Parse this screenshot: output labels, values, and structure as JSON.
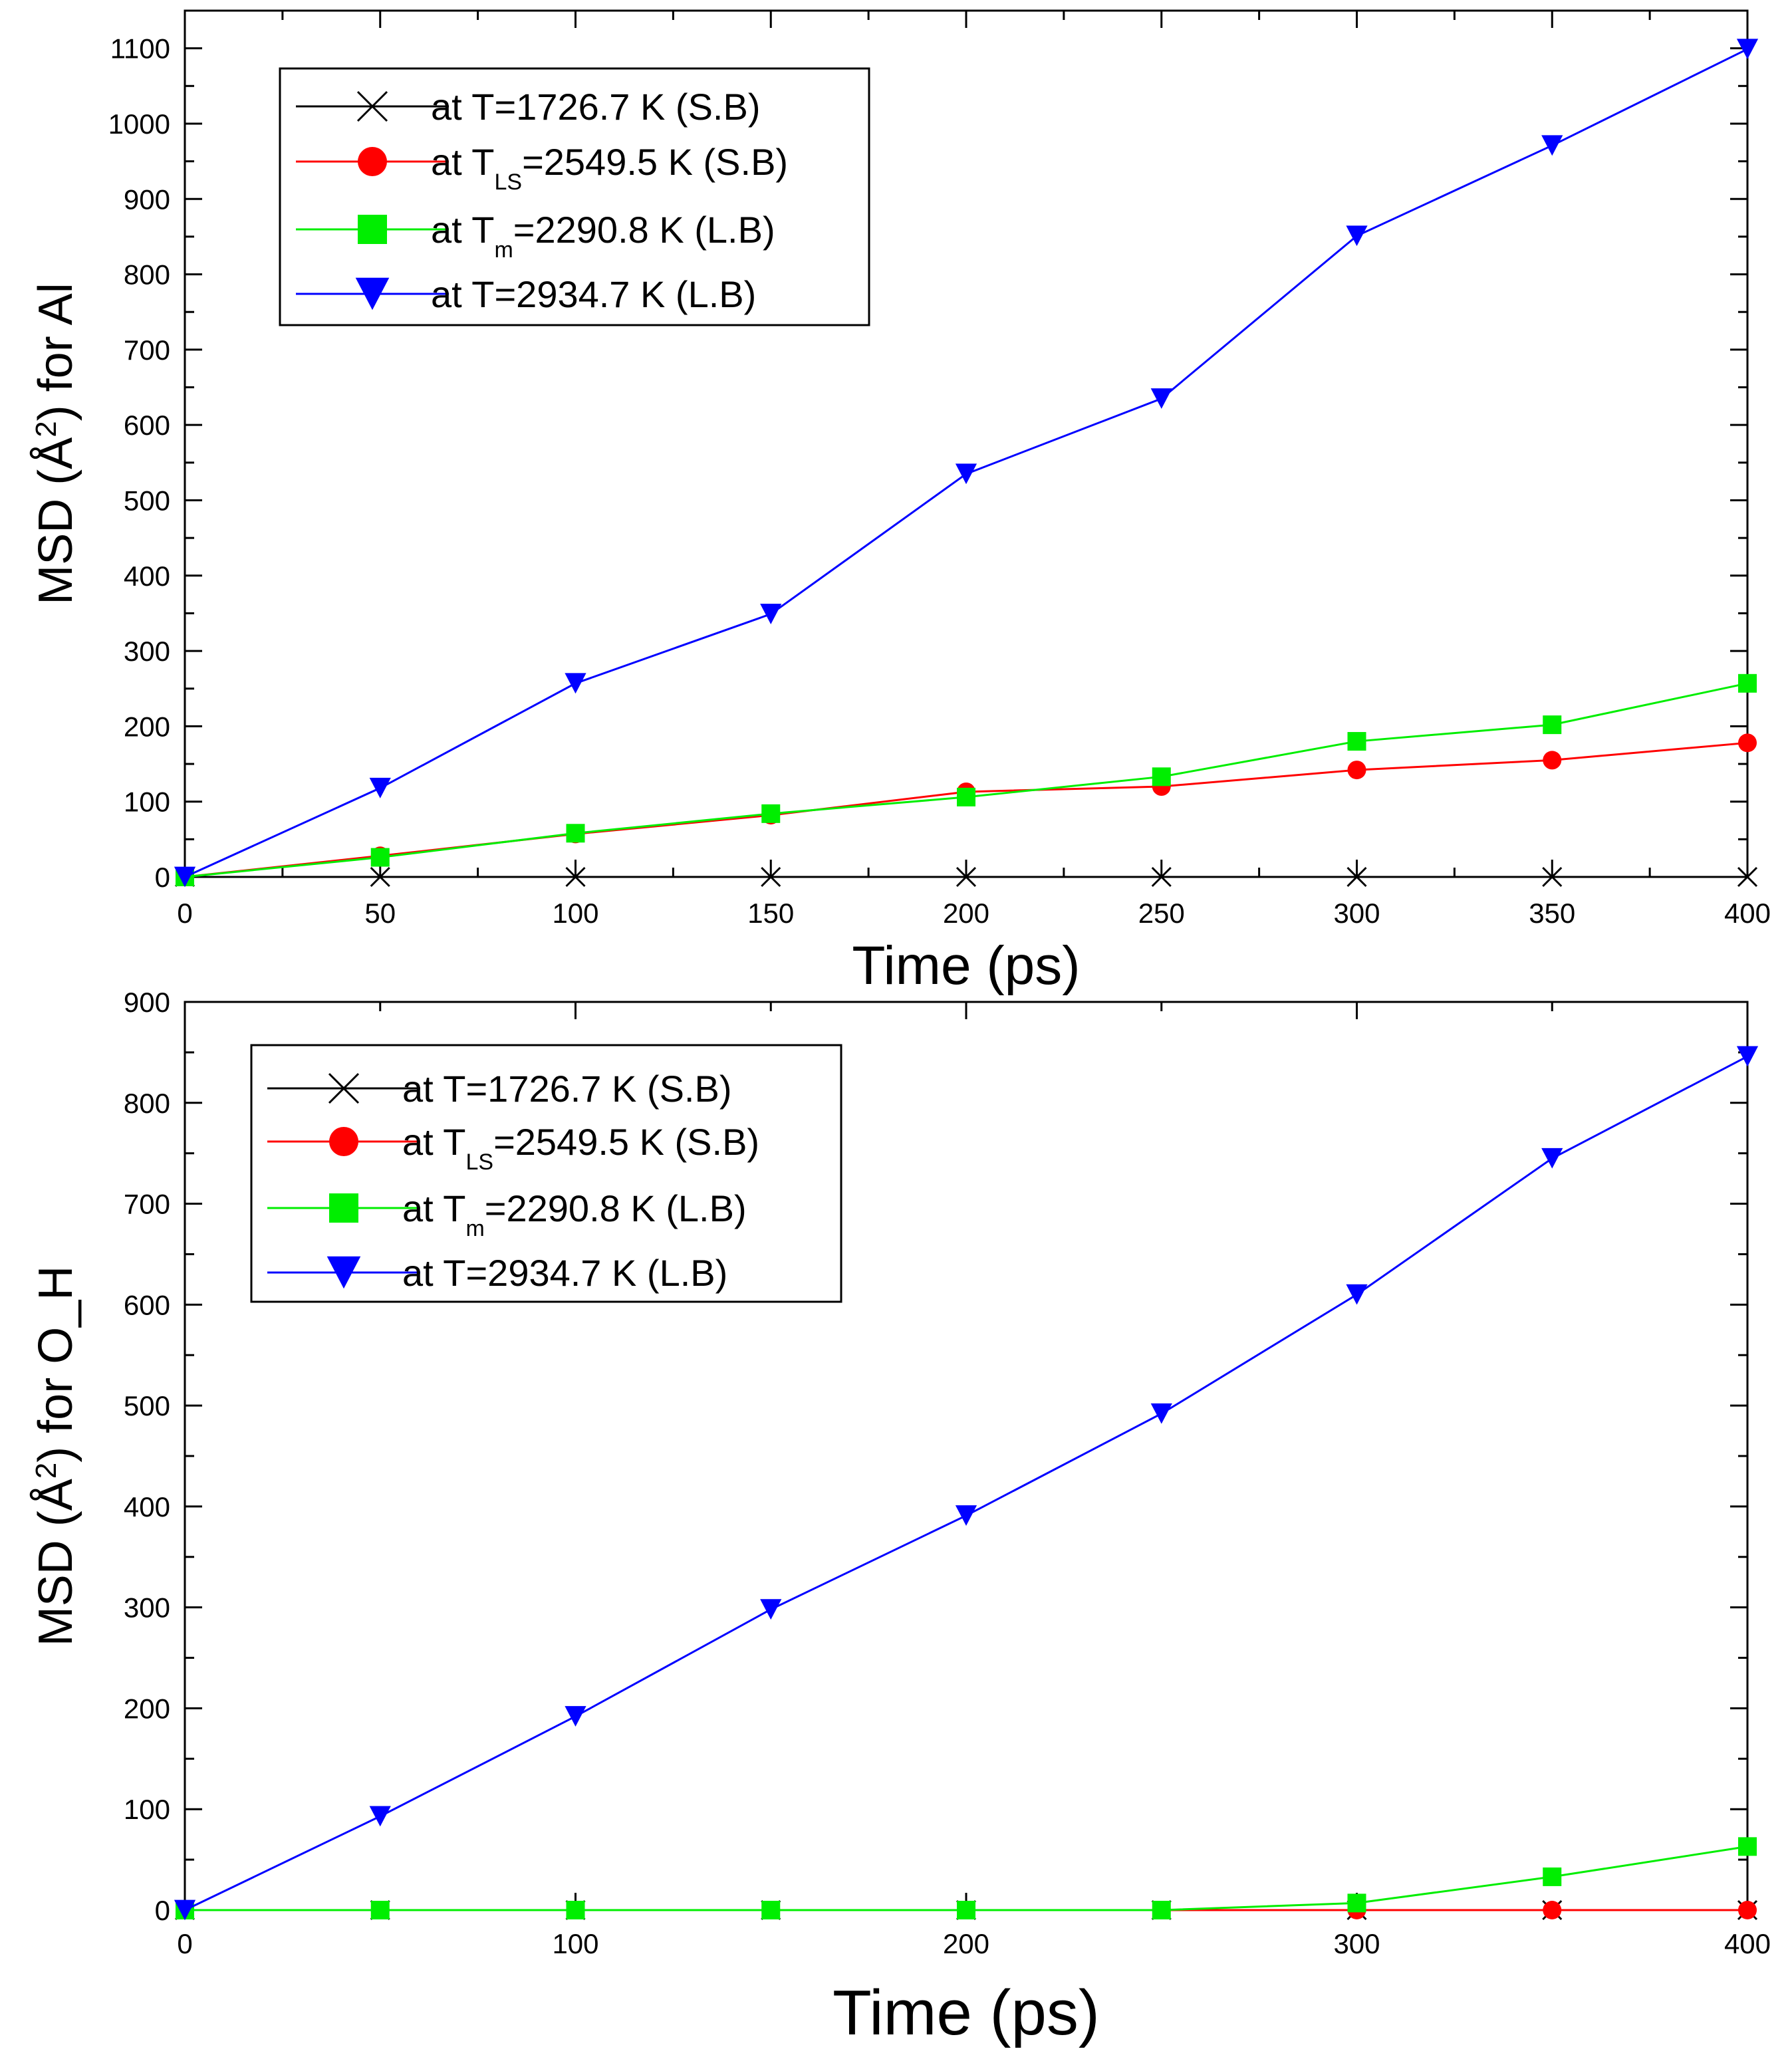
{
  "colors": {
    "black": "#000000",
    "red": "#ff0000",
    "green": "#00ee00",
    "blue": "#0000ff",
    "axis": "#000000",
    "background": "#ffffff"
  },
  "chart_data": [
    {
      "type": "line",
      "xlabel": "Time (ps)",
      "ylabel": "MSD (Å²) for Al",
      "ylabel_parts": {
        "pre": "MSD (Å",
        "sup": "2",
        "post": ") for Al"
      },
      "xlim": [
        0,
        400
      ],
      "ylim": [
        0,
        1150
      ],
      "xticks": [
        0,
        50,
        100,
        150,
        200,
        250,
        300,
        350,
        400
      ],
      "yticks": [
        0,
        100,
        200,
        300,
        400,
        500,
        600,
        700,
        800,
        900,
        1000,
        1100
      ],
      "x": [
        0,
        50,
        100,
        150,
        200,
        250,
        300,
        350,
        400
      ],
      "legend_position": "top-left",
      "series": [
        {
          "name": "at T=1726.7 K (S.B)",
          "legend": {
            "pre": "at T",
            "sub": "",
            "post": "=1726.7 K (S.B)"
          },
          "color": "#000000",
          "marker": "x",
          "values": [
            0,
            0,
            0,
            0,
            0,
            0,
            0,
            0,
            0
          ]
        },
        {
          "name": "at T_LS=2549.5 K (S.B)",
          "legend": {
            "pre": "at T",
            "sub": "LS",
            "post": "=2549.5 K (S.B)"
          },
          "color": "#ff0000",
          "marker": "circle",
          "values": [
            0,
            28,
            57,
            82,
            113,
            120,
            142,
            155,
            178
          ]
        },
        {
          "name": "at T_m=2290.8 K (L.B)",
          "legend": {
            "pre": "at T",
            "sub": "m",
            "post": "=2290.8 K (L.B)"
          },
          "color": "#00ee00",
          "marker": "square",
          "values": [
            0,
            26,
            58,
            84,
            106,
            133,
            180,
            202,
            257
          ]
        },
        {
          "name": "at T=2934.7 K (L.B)",
          "legend": {
            "pre": "at T",
            "sub": "",
            "post": "=2934.7 K (L.B)"
          },
          "color": "#0000ff",
          "marker": "triangle-down",
          "values": [
            0,
            118,
            257,
            349,
            535,
            635,
            851,
            971,
            1099
          ]
        }
      ]
    },
    {
      "type": "line",
      "xlabel": "Time (ps)",
      "ylabel": "MSD (Å²) for O_H",
      "ylabel_parts": {
        "pre": "MSD (Å",
        "sup": "2",
        "post": ") for O_H"
      },
      "xlim": [
        0,
        400
      ],
      "ylim": [
        0,
        900
      ],
      "xticks": [
        0,
        100,
        200,
        300,
        400
      ],
      "yticks": [
        0,
        100,
        200,
        300,
        400,
        500,
        600,
        700,
        800,
        900
      ],
      "x": [
        0,
        50,
        100,
        150,
        200,
        250,
        300,
        350,
        400
      ],
      "legend_position": "top-left",
      "series": [
        {
          "name": "at T=1726.7 K (S.B)",
          "legend": {
            "pre": "at T",
            "sub": "",
            "post": "=1726.7 K (S.B)"
          },
          "color": "#000000",
          "marker": "x",
          "values": [
            0,
            0,
            0,
            0,
            0,
            0,
            0,
            0,
            0
          ]
        },
        {
          "name": "at T_LS=2549.5 K (S.B)",
          "legend": {
            "pre": "at T",
            "sub": "LS",
            "post": "=2549.5 K (S.B)"
          },
          "color": "#ff0000",
          "marker": "circle",
          "values": [
            0,
            0,
            0,
            0,
            0,
            0,
            0,
            0,
            0
          ]
        },
        {
          "name": "at T_m=2290.8 K (L.B)",
          "legend": {
            "pre": "at T",
            "sub": "m",
            "post": "=2290.8 K (L.B)"
          },
          "color": "#00ee00",
          "marker": "square",
          "values": [
            0,
            0,
            0,
            0,
            0,
            0,
            7,
            33,
            63
          ]
        },
        {
          "name": "at T=2934.7 K (L.B)",
          "legend": {
            "pre": "at T",
            "sub": "",
            "post": "=2934.7 K (L.B)"
          },
          "color": "#0000ff",
          "marker": "triangle-down",
          "values": [
            0,
            93,
            192,
            298,
            391,
            492,
            610,
            745,
            846
          ]
        }
      ]
    }
  ]
}
